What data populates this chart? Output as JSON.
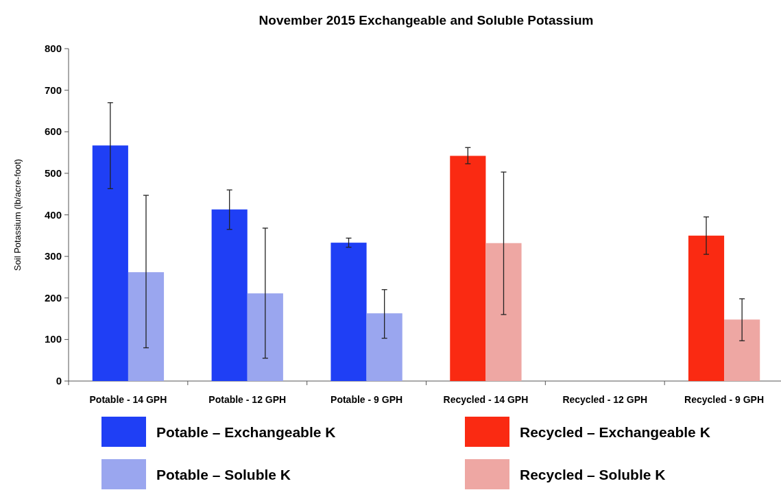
{
  "chart_data": {
    "type": "bar",
    "title": "November 2015 Exchangeable and Soluble Potassium",
    "ylabel": "Soil Potassium (lb/acre-foot)",
    "categories": [
      "Potable - 14 GPH",
      "Potable - 12 GPH",
      "Potable - 9 GPH",
      "Recycled - 14 GPH",
      "Recycled - 12 GPH",
      "Recycled - 9 GPH"
    ],
    "series": [
      {
        "name": "Potable – Exchangeable K",
        "color": "#1f3ff5",
        "values": [
          567,
          413,
          333,
          null,
          null,
          null
        ],
        "errors": [
          [
            463,
            670
          ],
          [
            365,
            460
          ],
          [
            322,
            344
          ],
          null,
          null,
          null
        ]
      },
      {
        "name": "Potable – Soluble K",
        "color": "#9aa6ef",
        "values": [
          262,
          211,
          163,
          null,
          null,
          null
        ],
        "errors": [
          [
            80,
            447
          ],
          [
            55,
            368
          ],
          [
            103,
            220
          ],
          null,
          null,
          null
        ]
      },
      {
        "name": "Recycled – Exchangeable K",
        "color": "#fa2a12",
        "values": [
          null,
          null,
          null,
          542,
          null,
          350
        ],
        "errors": [
          null,
          null,
          null,
          [
            523,
            562
          ],
          null,
          [
            305,
            395
          ]
        ]
      },
      {
        "name": "Recycled – Soluble K",
        "color": "#eea7a3",
        "values": [
          null,
          null,
          null,
          332,
          null,
          148
        ],
        "errors": [
          null,
          null,
          null,
          [
            160,
            503
          ],
          null,
          [
            97,
            198
          ]
        ]
      }
    ],
    "ylim": [
      0,
      800
    ],
    "yticks": [
      0,
      100,
      200,
      300,
      400,
      500,
      600,
      700,
      800
    ],
    "grid": false,
    "legend": "bottom"
  }
}
